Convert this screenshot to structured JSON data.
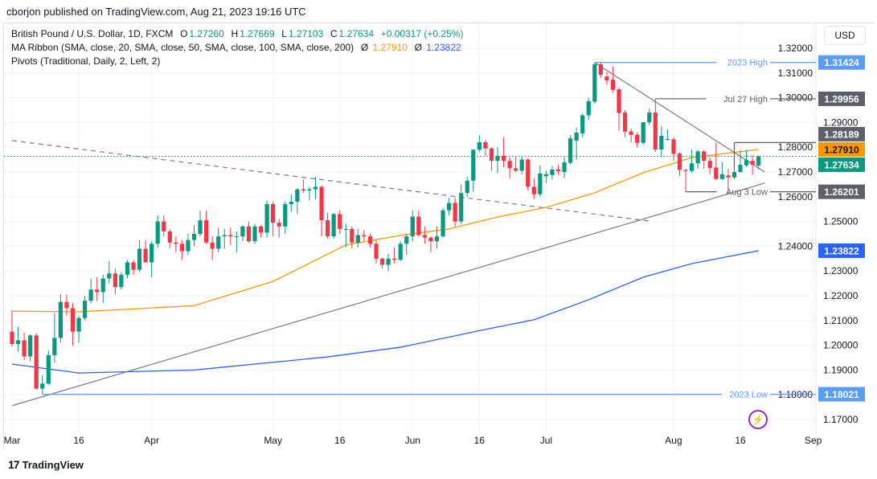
{
  "header": {
    "publisher": "cborjon published on TradingView.com, Aug 21, 2023 19:16 UTC"
  },
  "legend": {
    "symbol": "British Pound / U.S. Dollar, 1D, FXCM",
    "o_label": "O",
    "o": "1.27260",
    "h_label": "H",
    "h": "1.27669",
    "l_label": "L",
    "l": "1.27103",
    "c_label": "C",
    "c": "1.27634",
    "change": "+0.00317 (+0.25%)",
    "ma_ribbon": "MA Ribbon (SMA, close, 20, SMA, close, 50, SMA, close, 100, SMA, close, 200)",
    "ma_sym1": "Ø",
    "ma1": "1.27910",
    "ma_sym2": "Ø",
    "ma2": "1.23822",
    "pivots": "Pivots (Traditional, Daily, 2, Left, 2)"
  },
  "currency_button": "USD",
  "footer": {
    "logo_text": "TradingView"
  },
  "colors": {
    "up": "#089981",
    "down": "#f23645",
    "sma50": "#ff9800",
    "sma200": "#2962ff",
    "high_low_line": "#5b9cf6",
    "annotation_gray": "#5d606b",
    "trendline": "#787b86"
  },
  "icons": {
    "alert": "lightning-icon",
    "logo": "tradingview-logo-icon"
  },
  "chart_data": {
    "type": "candlestick",
    "symbol": "GBP/USD",
    "ylim": [
      1.165,
      1.322
    ],
    "price_ticks": [
      "1.32000",
      "1.31000",
      "1.30000",
      "1.29000",
      "1.28000",
      "1.27000",
      "1.26000",
      "1.25000",
      "1.24000",
      "1.23000",
      "1.22000",
      "1.21000",
      "1.20000",
      "1.19000",
      "1.18000",
      "1.17000"
    ],
    "time_ticks": [
      {
        "label": "Mar",
        "date": "2023-03-01"
      },
      {
        "label": "16",
        "date": "2023-03-16"
      },
      {
        "label": "Apr",
        "date": "2023-04-03"
      },
      {
        "label": "May",
        "date": "2023-05-01"
      },
      {
        "label": "16",
        "date": "2023-05-16"
      },
      {
        "label": "Jun",
        "date": "2023-06-01"
      },
      {
        "label": "16",
        "date": "2023-06-16"
      },
      {
        "label": "Jul",
        "date": "2023-07-03"
      },
      {
        "label": "Aug",
        "date": "2023-08-01"
      },
      {
        "label": "16",
        "date": "2023-08-16"
      },
      {
        "label": "Sep",
        "date": "2023-09-01"
      }
    ],
    "ohlc": [
      [
        "2023-03-01",
        1.2055,
        1.214,
        1.1995,
        1.2005
      ],
      [
        "2023-03-02",
        1.2005,
        1.2075,
        1.1975,
        1.202
      ],
      [
        "2023-03-03",
        1.202,
        1.205,
        1.194,
        1.1955
      ],
      [
        "2023-03-06",
        1.1955,
        1.2045,
        1.1935,
        1.204
      ],
      [
        "2023-03-07",
        1.204,
        1.205,
        1.182,
        1.1825
      ],
      [
        "2023-03-08",
        1.1825,
        1.188,
        1.1803,
        1.1845
      ],
      [
        "2023-03-09",
        1.1845,
        1.198,
        1.184,
        1.196
      ],
      [
        "2023-03-10",
        1.196,
        1.213,
        1.193,
        1.203
      ],
      [
        "2023-03-13",
        1.203,
        1.2205,
        1.201,
        1.2175
      ],
      [
        "2023-03-14",
        1.2175,
        1.2205,
        1.212,
        1.215
      ],
      [
        "2023-03-15",
        1.215,
        1.217,
        1.2,
        1.2055
      ],
      [
        "2023-03-16",
        1.2055,
        1.212,
        1.201,
        1.211
      ],
      [
        "2023-03-17",
        1.211,
        1.22,
        1.21,
        1.218
      ],
      [
        "2023-03-20",
        1.218,
        1.227,
        1.217,
        1.2225
      ],
      [
        "2023-03-21",
        1.2225,
        1.2275,
        1.218,
        1.2215
      ],
      [
        "2023-03-22",
        1.2215,
        1.2285,
        1.217,
        1.227
      ],
      [
        "2023-03-23",
        1.227,
        1.234,
        1.225,
        1.229
      ],
      [
        "2023-03-24",
        1.229,
        1.231,
        1.2205,
        1.2235
      ],
      [
        "2023-03-27",
        1.2235,
        1.2295,
        1.2225,
        1.2285
      ],
      [
        "2023-03-28",
        1.2285,
        1.2345,
        1.227,
        1.2335
      ],
      [
        "2023-03-29",
        1.2335,
        1.2345,
        1.2285,
        1.2305
      ],
      [
        "2023-03-30",
        1.2305,
        1.2425,
        1.2295,
        1.239
      ],
      [
        "2023-03-31",
        1.239,
        1.2425,
        1.2335,
        1.2335
      ],
      [
        "2023-04-03",
        1.2335,
        1.242,
        1.2275,
        1.241
      ],
      [
        "2023-04-04",
        1.241,
        1.2525,
        1.2395,
        1.25
      ],
      [
        "2023-04-05",
        1.25,
        1.2525,
        1.244,
        1.246
      ],
      [
        "2023-04-06",
        1.246,
        1.247,
        1.239,
        1.2415
      ],
      [
        "2023-04-07",
        1.2415,
        1.244,
        1.2375,
        1.241
      ],
      [
        "2023-04-10",
        1.241,
        1.2425,
        1.2345,
        1.238
      ],
      [
        "2023-04-11",
        1.238,
        1.245,
        1.2365,
        1.2425
      ],
      [
        "2023-04-12",
        1.2425,
        1.2485,
        1.24,
        1.245
      ],
      [
        "2023-04-13",
        1.245,
        1.2545,
        1.244,
        1.2505
      ],
      [
        "2023-04-14",
        1.2505,
        1.2545,
        1.241,
        1.2415
      ],
      [
        "2023-04-17",
        1.2415,
        1.244,
        1.2345,
        1.239
      ],
      [
        "2023-04-18",
        1.239,
        1.2475,
        1.2375,
        1.244
      ],
      [
        "2023-04-19",
        1.244,
        1.247,
        1.239,
        1.2445
      ],
      [
        "2023-04-20",
        1.2445,
        1.2475,
        1.2405,
        1.244
      ],
      [
        "2023-04-21",
        1.244,
        1.246,
        1.2375,
        1.244
      ],
      [
        "2023-04-24",
        1.244,
        1.2485,
        1.242,
        1.248
      ],
      [
        "2023-04-25",
        1.248,
        1.25,
        1.2415,
        1.242
      ],
      [
        "2023-04-26",
        1.242,
        1.249,
        1.241,
        1.248
      ],
      [
        "2023-04-27",
        1.248,
        1.2485,
        1.2435,
        1.2455
      ],
      [
        "2023-04-28",
        1.2455,
        1.2585,
        1.2435,
        1.257
      ],
      [
        "2023-05-01",
        1.257,
        1.258,
        1.244,
        1.2495
      ],
      [
        "2023-05-02",
        1.2495,
        1.251,
        1.2435,
        1.248
      ],
      [
        "2023-05-03",
        1.248,
        1.258,
        1.245,
        1.257
      ],
      [
        "2023-05-04",
        1.257,
        1.261,
        1.254,
        1.258
      ],
      [
        "2023-05-05",
        1.258,
        1.2635,
        1.253,
        1.263
      ],
      [
        "2023-05-08",
        1.263,
        1.267,
        1.2615,
        1.2625
      ],
      [
        "2023-05-09",
        1.2625,
        1.264,
        1.2585,
        1.263
      ],
      [
        "2023-05-10",
        1.263,
        1.268,
        1.259,
        1.264
      ],
      [
        "2023-05-11",
        1.264,
        1.2645,
        1.244,
        1.2505
      ],
      [
        "2023-05-12",
        1.2505,
        1.2535,
        1.243,
        1.244
      ],
      [
        "2023-05-15",
        1.244,
        1.2535,
        1.243,
        1.253
      ],
      [
        "2023-05-16",
        1.253,
        1.2545,
        1.245,
        1.247
      ],
      [
        "2023-05-17",
        1.247,
        1.249,
        1.2395,
        1.247
      ],
      [
        "2023-05-18",
        1.247,
        1.248,
        1.239,
        1.2415
      ],
      [
        "2023-05-19",
        1.2415,
        1.247,
        1.2395,
        1.2445
      ],
      [
        "2023-05-22",
        1.2445,
        1.2465,
        1.242,
        1.244
      ],
      [
        "2023-05-23",
        1.244,
        1.245,
        1.2395,
        1.241
      ],
      [
        "2023-05-24",
        1.241,
        1.2425,
        1.233,
        1.235
      ],
      [
        "2023-05-25",
        1.235,
        1.2355,
        1.231,
        1.2325
      ],
      [
        "2023-05-26",
        1.2325,
        1.237,
        1.23,
        1.235
      ],
      [
        "2023-05-29",
        1.235,
        1.2395,
        1.233,
        1.2345
      ],
      [
        "2023-05-30",
        1.2345,
        1.242,
        1.234,
        1.241
      ],
      [
        "2023-05-31",
        1.241,
        1.245,
        1.2365,
        1.244
      ],
      [
        "2023-06-01",
        1.244,
        1.2545,
        1.242,
        1.252
      ],
      [
        "2023-06-02",
        1.252,
        1.2545,
        1.244,
        1.2445
      ],
      [
        "2023-06-05",
        1.2445,
        1.248,
        1.241,
        1.2435
      ],
      [
        "2023-06-06",
        1.2435,
        1.244,
        1.2375,
        1.242
      ],
      [
        "2023-06-07",
        1.242,
        1.248,
        1.239,
        1.244
      ],
      [
        "2023-06-08",
        1.244,
        1.2555,
        1.2435,
        1.2545
      ],
      [
        "2023-06-09",
        1.2545,
        1.2595,
        1.2525,
        1.2575
      ],
      [
        "2023-06-12",
        1.2575,
        1.2595,
        1.248,
        1.25
      ],
      [
        "2023-06-13",
        1.25,
        1.265,
        1.249,
        1.2615
      ],
      [
        "2023-06-14",
        1.2615,
        1.268,
        1.26,
        1.2665
      ],
      [
        "2023-06-15",
        1.2665,
        1.279,
        1.262,
        1.279
      ],
      [
        "2023-06-16",
        1.279,
        1.2848,
        1.278,
        1.282
      ],
      [
        "2023-06-19",
        1.282,
        1.283,
        1.2765,
        1.2795
      ],
      [
        "2023-06-20",
        1.2795,
        1.28,
        1.2705,
        1.2745
      ],
      [
        "2023-06-21",
        1.2745,
        1.28,
        1.2695,
        1.2765
      ],
      [
        "2023-06-22",
        1.2765,
        1.284,
        1.272,
        1.2745
      ],
      [
        "2023-06-23",
        1.2745,
        1.276,
        1.2675,
        1.2715
      ],
      [
        "2023-06-26",
        1.2715,
        1.2765,
        1.27,
        1.2705
      ],
      [
        "2023-06-27",
        1.2705,
        1.2765,
        1.269,
        1.275
      ],
      [
        "2023-06-28",
        1.275,
        1.2755,
        1.2625,
        1.264
      ],
      [
        "2023-06-29",
        1.264,
        1.2675,
        1.259,
        1.261
      ],
      [
        "2023-06-30",
        1.261,
        1.2726,
        1.26,
        1.2694
      ],
      [
        "2023-07-03",
        1.2683,
        1.2705,
        1.2655,
        1.2691
      ],
      [
        "2023-07-04",
        1.2688,
        1.2725,
        1.267,
        1.271
      ],
      [
        "2023-07-05",
        1.271,
        1.273,
        1.269,
        1.2703
      ],
      [
        "2023-07-06",
        1.27,
        1.276,
        1.2675,
        1.2739
      ],
      [
        "2023-07-07",
        1.2737,
        1.285,
        1.273,
        1.2836
      ],
      [
        "2023-07-10",
        1.2827,
        1.288,
        1.275,
        1.2859
      ],
      [
        "2023-07-11",
        1.2856,
        1.2935,
        1.284,
        1.2929
      ],
      [
        "2023-07-12",
        1.2929,
        1.3,
        1.291,
        1.2986
      ],
      [
        "2023-07-13",
        1.2984,
        1.314,
        1.2975,
        1.3135
      ],
      [
        "2023-07-14",
        1.3135,
        1.3144,
        1.308,
        1.3092
      ],
      [
        "2023-07-17",
        1.3086,
        1.3105,
        1.3052,
        1.307
      ],
      [
        "2023-07-18",
        1.3073,
        1.3125,
        1.302,
        1.3032
      ],
      [
        "2023-07-19",
        1.3034,
        1.304,
        1.2867,
        1.2938
      ],
      [
        "2023-07-20",
        1.294,
        1.295,
        1.2841,
        1.2863
      ],
      [
        "2023-07-21",
        1.2864,
        1.2875,
        1.282,
        1.285
      ],
      [
        "2023-07-24",
        1.285,
        1.286,
        1.28,
        1.2818
      ],
      [
        "2023-07-25",
        1.2818,
        1.2901,
        1.281,
        1.2901
      ],
      [
        "2023-07-26",
        1.2901,
        1.2956,
        1.289,
        1.294
      ],
      [
        "2023-07-27",
        1.294,
        1.2996,
        1.2781,
        1.2791
      ],
      [
        "2023-07-28",
        1.2791,
        1.2886,
        1.2762,
        1.2846
      ],
      [
        "2023-07-31",
        1.2832,
        1.2872,
        1.2827,
        1.2833
      ],
      [
        "2023-08-01",
        1.2832,
        1.284,
        1.2745,
        1.2773
      ],
      [
        "2023-08-02",
        1.2775,
        1.278,
        1.2683,
        1.2708
      ],
      [
        "2023-08-03",
        1.2708,
        1.2712,
        1.262,
        1.2704
      ],
      [
        "2023-08-04",
        1.2704,
        1.2791,
        1.2697,
        1.2735
      ],
      [
        "2023-08-07",
        1.2735,
        1.2789,
        1.2713,
        1.2783
      ],
      [
        "2023-08-08",
        1.2783,
        1.279,
        1.2713,
        1.2745
      ],
      [
        "2023-08-09",
        1.2745,
        1.276,
        1.2691,
        1.2716
      ],
      [
        "2023-08-10",
        1.2718,
        1.2818,
        1.2667,
        1.2672
      ],
      [
        "2023-08-11",
        1.2672,
        1.274,
        1.2667,
        1.2691
      ],
      [
        "2023-08-14",
        1.2686,
        1.2713,
        1.2616,
        1.2678
      ],
      [
        "2023-08-15",
        1.2678,
        1.2754,
        1.2672,
        1.27
      ],
      [
        "2023-08-16",
        1.27,
        1.2789,
        1.2697,
        1.2729
      ],
      [
        "2023-08-17",
        1.2727,
        1.2789,
        1.272,
        1.2748
      ],
      [
        "2023-08-18",
        1.2745,
        1.2767,
        1.2689,
        1.2729
      ],
      [
        "2023-08-21",
        1.2726,
        1.2767,
        1.271,
        1.2763
      ]
    ],
    "sma50": [
      [
        "2023-03-01",
        1.2138
      ],
      [
        "2023-03-16",
        1.2135
      ],
      [
        "2023-04-12",
        1.216
      ],
      [
        "2023-05-01",
        1.2258
      ],
      [
        "2023-05-17",
        1.2405
      ],
      [
        "2023-05-30",
        1.2444
      ],
      [
        "2023-06-09",
        1.247
      ],
      [
        "2023-06-21",
        1.2518
      ],
      [
        "2023-07-03",
        1.2557
      ],
      [
        "2023-07-13",
        1.2616
      ],
      [
        "2023-07-25",
        1.2697
      ],
      [
        "2023-08-04",
        1.2758
      ],
      [
        "2023-08-21",
        1.2791
      ]
    ],
    "sma200": [
      [
        "2023-03-01",
        1.1924
      ],
      [
        "2023-03-16",
        1.1888
      ],
      [
        "2023-04-12",
        1.19
      ],
      [
        "2023-05-12",
        1.1953
      ],
      [
        "2023-05-30",
        1.1992
      ],
      [
        "2023-06-19",
        1.2064
      ],
      [
        "2023-06-29",
        1.2103
      ],
      [
        "2023-07-12",
        1.2184
      ],
      [
        "2023-07-25",
        1.2275
      ],
      [
        "2023-08-04",
        1.233
      ],
      [
        "2023-08-21",
        1.2382
      ]
    ],
    "trendlines": [
      {
        "style": "dashed",
        "from": [
          "2023-03-01",
          1.2827
        ],
        "to": [
          "2023-07-26",
          1.2502
        ]
      },
      {
        "style": "solid",
        "from": [
          "2023-03-01",
          1.1756
        ],
        "to": [
          "2023-08-22",
          1.2655
        ]
      },
      {
        "style": "solid",
        "from": [
          "2023-07-13",
          1.3142
        ],
        "to": [
          "2023-08-22",
          1.27
        ]
      }
    ],
    "levels": [
      {
        "label": "2023 High",
        "value": 1.31424,
        "badge": "1.31424",
        "from": "2023-07-13",
        "kind": "blue"
      },
      {
        "label": "Jul 27 High",
        "value": 1.29956,
        "badge": "1.29956",
        "from": "2023-07-27",
        "kind": "gray"
      },
      {
        "label": "",
        "value": 1.28189,
        "badge": "1.28189",
        "from": "2023-08-15",
        "kind": "gray"
      },
      {
        "label": "Aug 3 Low",
        "value": 1.26201,
        "badge": "1.26201",
        "from": "2023-08-03",
        "kind": "gray"
      },
      {
        "label": "2023 Low",
        "value": 1.18021,
        "badge": "1.18021",
        "from": "2023-03-08",
        "kind": "blue"
      }
    ],
    "badges": {
      "sma50": "1.27910",
      "sma200": "1.23822",
      "last": "1.27634"
    },
    "last_price": 1.27634
  }
}
